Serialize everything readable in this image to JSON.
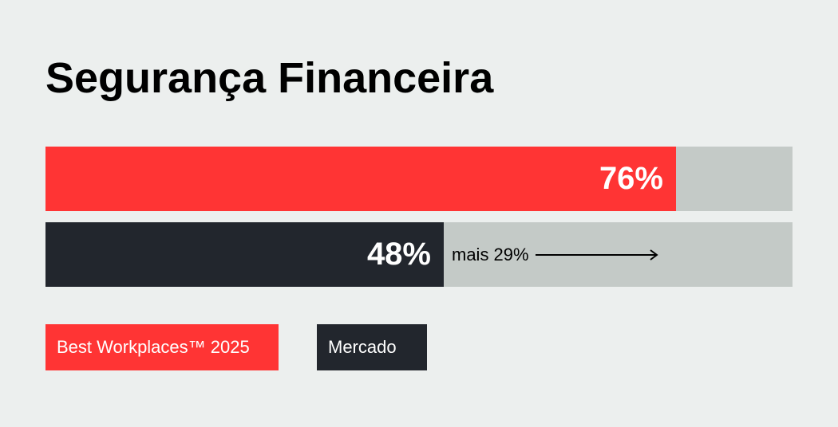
{
  "title": "Segurança Financeira",
  "comparison_label": "mais 29%",
  "colors": {
    "background": "#ecefee",
    "track": "#c4cac7",
    "best_workplaces": "#ff3434",
    "mercado": "#22262d"
  },
  "legend": [
    {
      "label": "Best Workplaces™ 2025",
      "color": "#ff3434"
    },
    {
      "label": "Mercado",
      "color": "#22262d"
    }
  ],
  "chart_data": {
    "type": "bar",
    "orientation": "horizontal",
    "title": "Segurança Financeira",
    "series": [
      {
        "name": "Best Workplaces™ 2025",
        "values": [
          76
        ],
        "labels": [
          "76%"
        ]
      },
      {
        "name": "Mercado",
        "values": [
          48
        ],
        "labels": [
          "48%"
        ]
      }
    ],
    "xlim": [
      0,
      90
    ],
    "annotations": [
      "mais 29%"
    ],
    "legend_position": "bottom-left",
    "grid": false
  }
}
